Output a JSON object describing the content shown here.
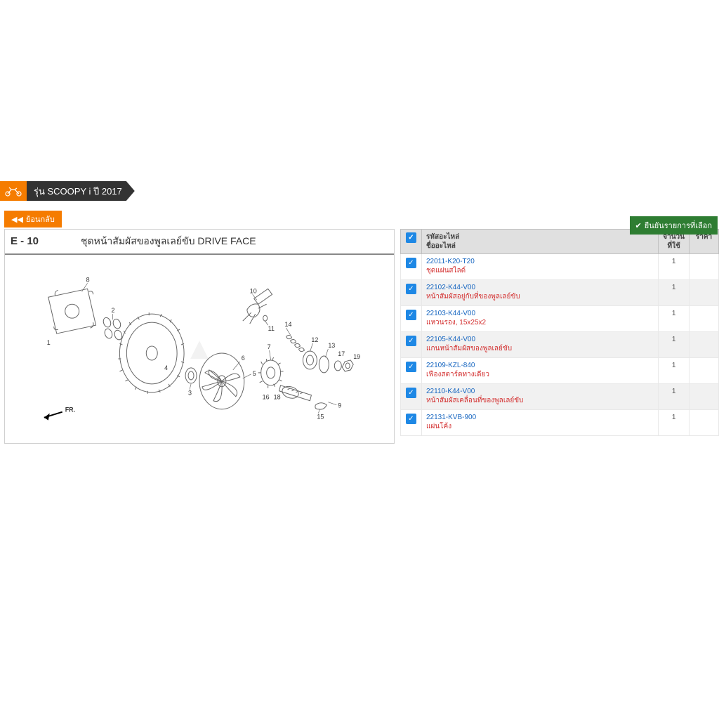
{
  "header": {
    "model_label": "รุ่น SCOOPY i ปี 2017",
    "back_label": "ย้อนกลับ"
  },
  "diagram": {
    "section_code": "E - 10",
    "section_title": "ชุดหน้าสัมผัสของพูลเลย์ขับ  DRIVE FACE",
    "front_label": "FR.",
    "callouts": [
      "1",
      "2",
      "3",
      "4",
      "5",
      "6",
      "7",
      "8",
      "9",
      "10",
      "11",
      "12",
      "13",
      "14",
      "15",
      "16",
      "17",
      "18",
      "19"
    ]
  },
  "parts_table": {
    "confirm_label": "ยืนยันรายการที่เลือก",
    "header": {
      "code": "รหัสอะไหล่",
      "name": "ชื่ออะไหล่",
      "qty": "จำนวน\nที่ใช้",
      "price": "ราคา"
    },
    "rows": [
      {
        "code": "22011-K20-T20",
        "name": "ชุดแผ่นสไลด์",
        "qty": "1"
      },
      {
        "code": "22102-K44-V00",
        "name": "หน้าสัมผัสอยู่กับที่ของพูลเลย์ขับ",
        "qty": "1"
      },
      {
        "code": "22103-K44-V00",
        "name": "แหวนรอง, 15x25x2",
        "qty": "1"
      },
      {
        "code": "22105-K44-V00",
        "name": "แกนหน้าสัมผัสของพูลเลย์ขับ",
        "qty": "1"
      },
      {
        "code": "22109-KZL-840",
        "name": "เฟืองสตาร์ตทางเดียว",
        "qty": "1"
      },
      {
        "code": "22110-K44-V00",
        "name": "หน้าสัมผัสเคลื่อนที่ของพูลเลย์ขับ",
        "qty": "1"
      },
      {
        "code": "22131-KVB-900",
        "name": "แผ่นโค้ง",
        "qty": "1"
      }
    ]
  },
  "colors": {
    "orange": "#f57c00",
    "dark": "#333333",
    "green": "#2e7d32",
    "link": "#1565c0",
    "red_text": "#d32f2f",
    "checkbox": "#1e88e5",
    "row_alt": "#f1f1f1",
    "header_bg": "#e0e0e0"
  }
}
